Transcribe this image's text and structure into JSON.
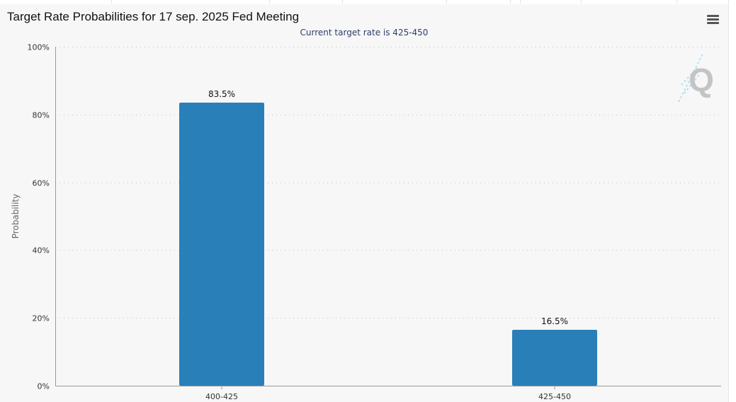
{
  "colors": {
    "bar": "#2980b9",
    "grid": "#c4c4c4",
    "axis": "#999999",
    "text": "#333333",
    "subtitle": "#2c3e6a",
    "background": "#f7f7f7"
  },
  "menu": {
    "icon": "hamburger-menu-icon"
  },
  "watermark": {
    "icon": "q-logo-icon",
    "text": "Q"
  },
  "chart_data": {
    "type": "bar",
    "title": "Target Rate Probabilities for 17 sep. 2025 Fed Meeting",
    "subtitle": "Current target rate is 425-450",
    "xlabel": "",
    "ylabel": "Probability",
    "categories": [
      "400-425",
      "425-450"
    ],
    "values": [
      83.5,
      16.5
    ],
    "data_labels": [
      "83.5%",
      "16.5%"
    ],
    "ylim": [
      0,
      100
    ],
    "yticks": [
      0,
      20,
      40,
      60,
      80,
      100
    ],
    "ytick_labels": [
      "0%",
      "20%",
      "40%",
      "60%",
      "80%",
      "100%"
    ],
    "grid": true,
    "legend": "none"
  }
}
